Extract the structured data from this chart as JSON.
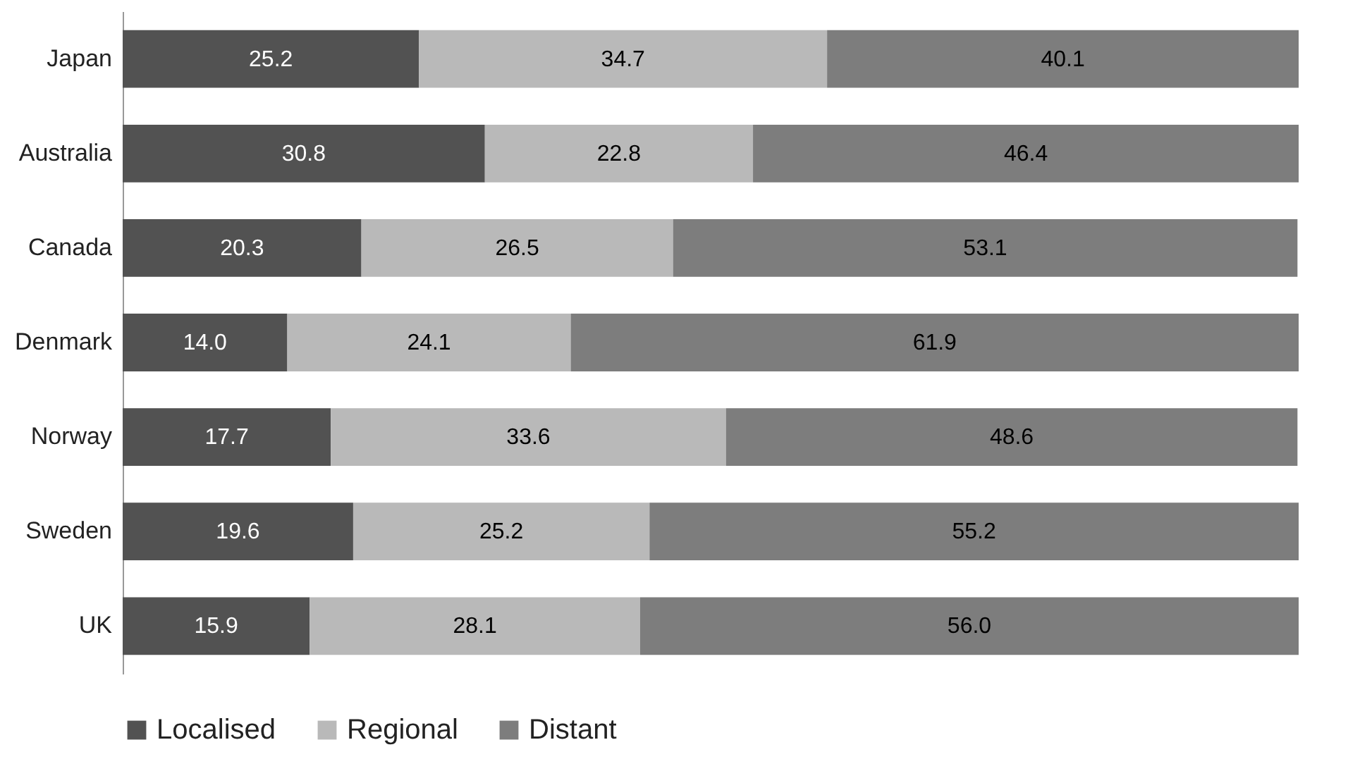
{
  "chart_data": {
    "type": "bar",
    "orientation": "horizontal",
    "stacked": true,
    "legend": "bottom",
    "tick_labels": "y",
    "categories": [
      "Japan",
      "Australia",
      "Canada",
      "Denmark",
      "Norway",
      "Sweden",
      "UK"
    ],
    "series": [
      {
        "name": "Localised",
        "color": "#525252",
        "values": [
          25.2,
          30.8,
          20.3,
          14.0,
          17.7,
          19.6,
          15.9
        ],
        "value_labels": [
          "25.2",
          "30.8",
          "20.3",
          "14.0",
          "17.7",
          "19.6",
          "15.9"
        ]
      },
      {
        "name": "Regional",
        "color": "#b9b9b9",
        "values": [
          34.7,
          22.8,
          26.5,
          24.1,
          33.6,
          25.2,
          28.1
        ],
        "value_labels": [
          "34.7",
          "22.8",
          "26.5",
          "24.1",
          "33.6",
          "25.2",
          "28.1"
        ]
      },
      {
        "name": "Distant",
        "color": "#7d7d7d",
        "values": [
          40.1,
          46.4,
          53.1,
          61.9,
          48.6,
          55.2,
          56.0
        ],
        "value_labels": [
          "40.1",
          "46.4",
          "53.1",
          "61.9",
          "48.6",
          "55.2",
          "56.0"
        ]
      }
    ]
  }
}
